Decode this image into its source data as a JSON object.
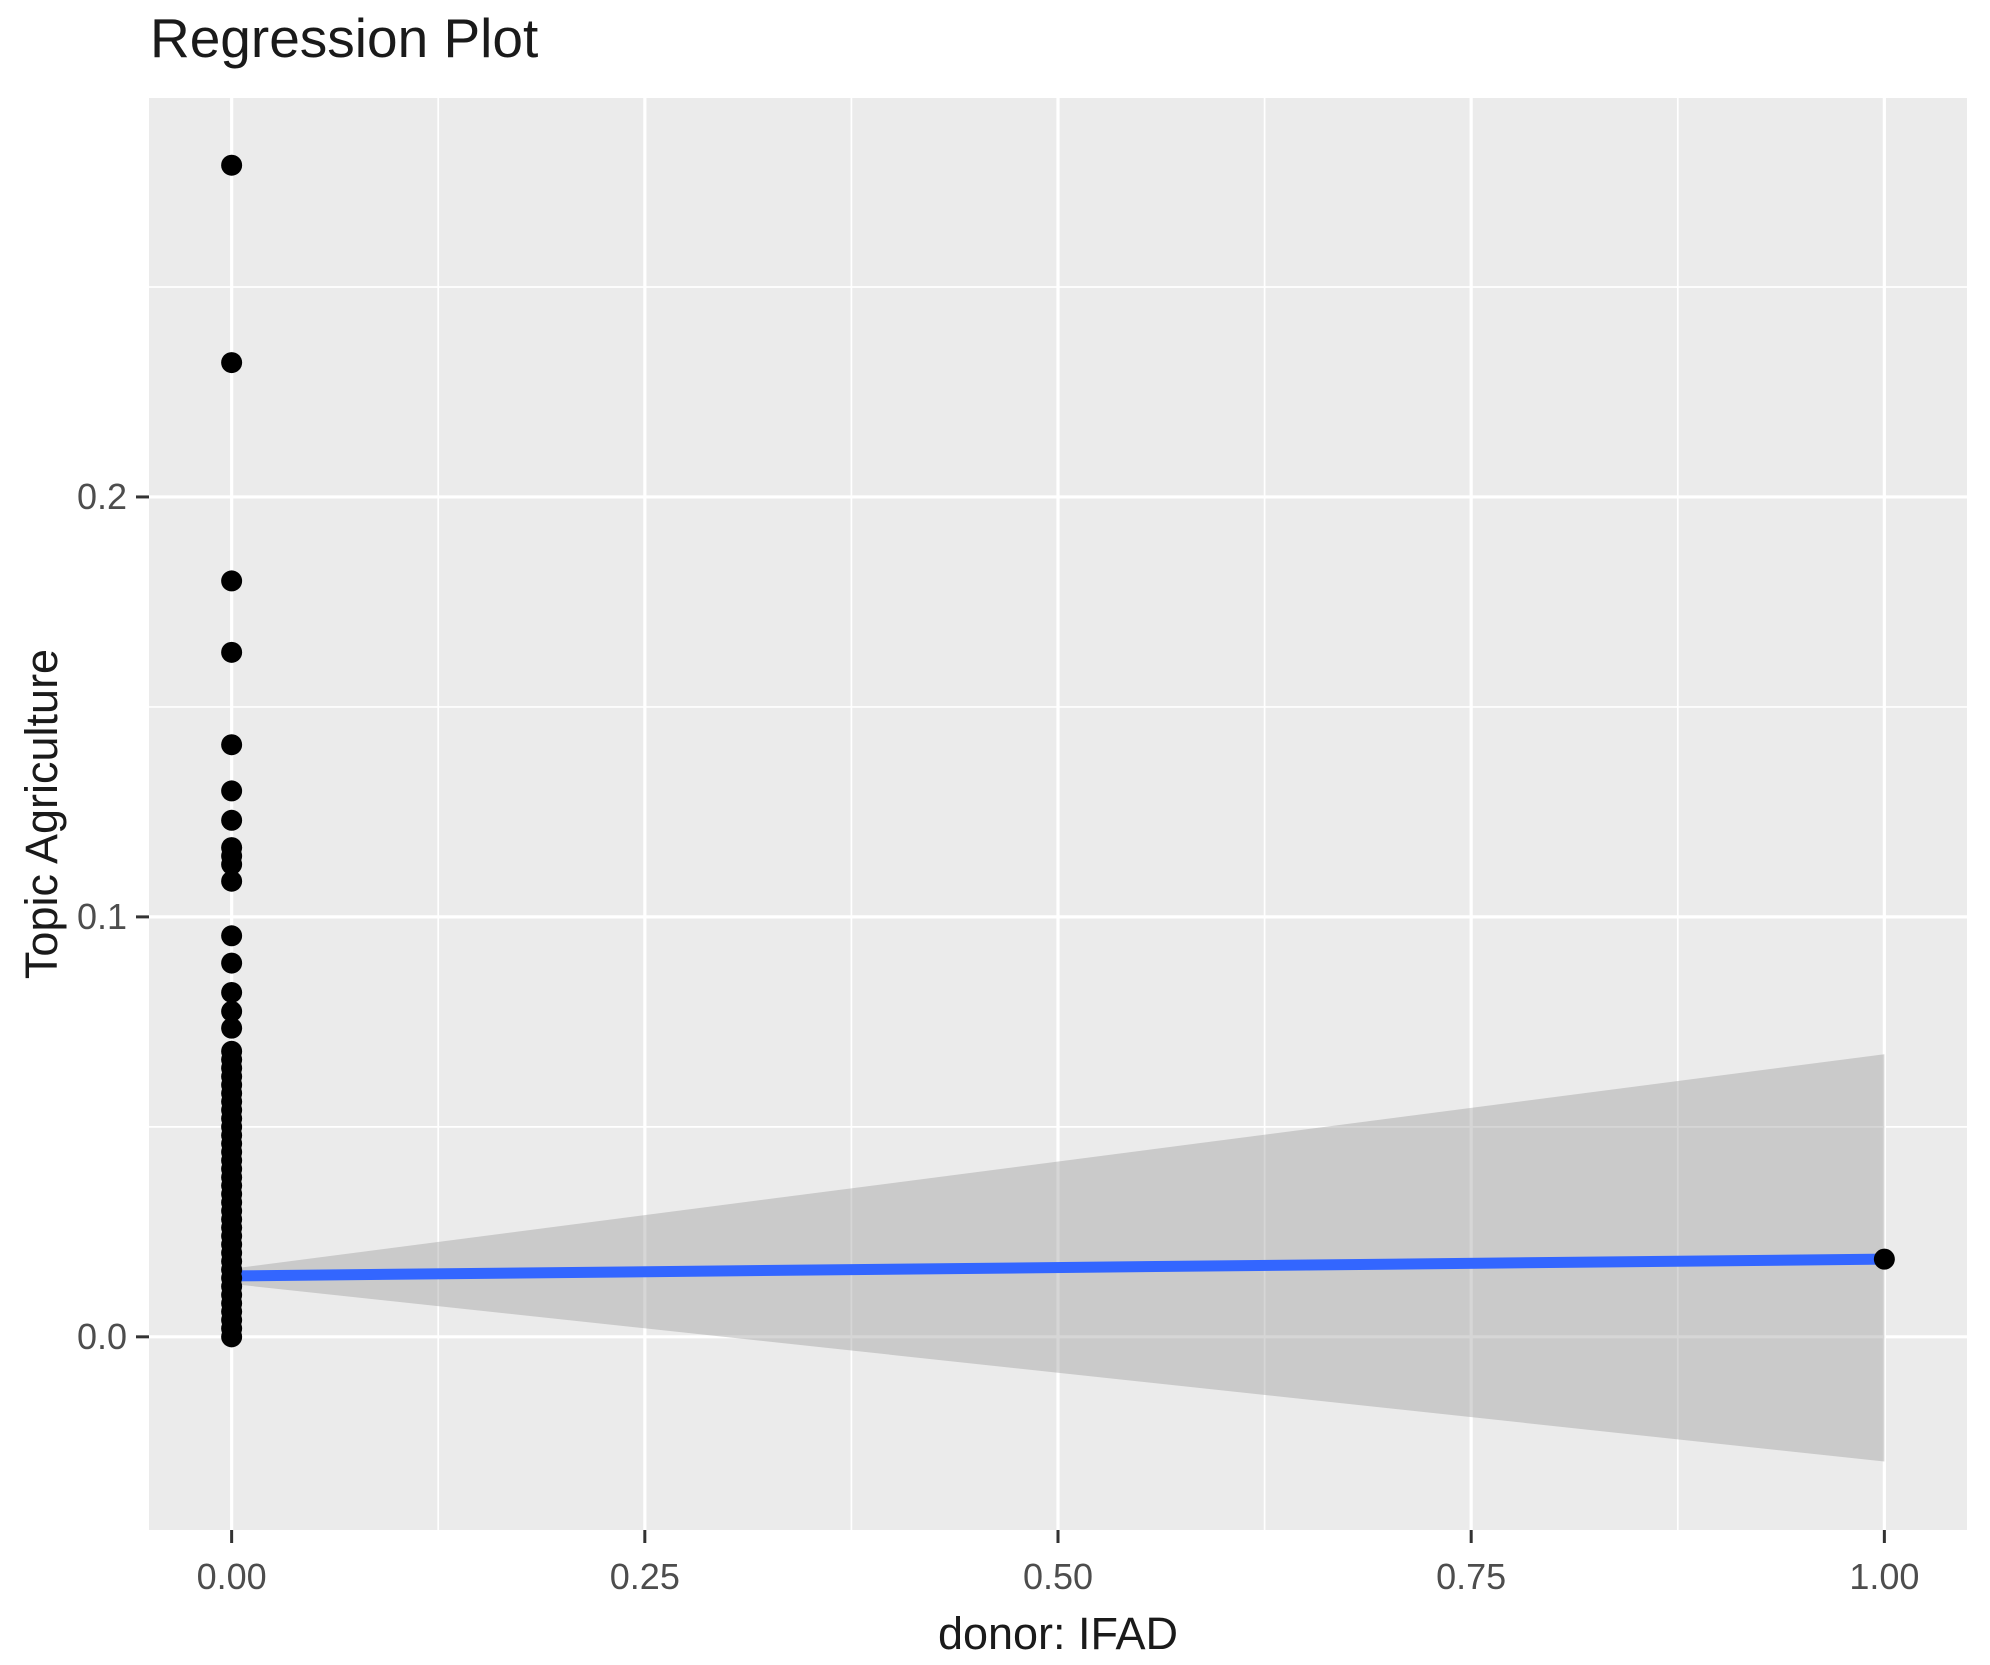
{
  "chart_data": {
    "type": "scatter",
    "title": "Regression Plot",
    "xlabel": "donor: IFAD",
    "ylabel": "Topic Agriculture",
    "legend": "none",
    "grid": true,
    "xlim": [
      -0.05,
      1.05
    ],
    "ylim": [
      -0.046,
      0.295
    ],
    "x_major_ticks": [
      0.0,
      0.25,
      0.5,
      0.75,
      1.0
    ],
    "x_tick_labels": [
      "0.00",
      "0.25",
      "0.50",
      "0.75",
      "1.00"
    ],
    "x_minor_ticks": [
      0.125,
      0.375,
      0.625,
      0.875
    ],
    "y_major_ticks": [
      0.0,
      0.1,
      0.2
    ],
    "y_tick_labels": [
      "0.0",
      "0.1",
      "0.2"
    ],
    "y_minor_ticks": [
      0.05,
      0.15,
      0.25
    ],
    "points": [
      [
        0,
        0.279
      ],
      [
        0,
        0.232
      ],
      [
        0,
        0.18
      ],
      [
        0,
        0.163
      ],
      [
        0,
        0.141
      ],
      [
        0,
        0.13
      ],
      [
        0,
        0.123
      ],
      [
        0,
        0.1165
      ],
      [
        0,
        0.1145
      ],
      [
        0,
        0.1125
      ],
      [
        0,
        0.1085
      ],
      [
        0,
        0.0955
      ],
      [
        0,
        0.089
      ],
      [
        0,
        0.082
      ],
      [
        0,
        0.0775
      ],
      [
        0,
        0.0735
      ],
      [
        0,
        0.068
      ],
      [
        0,
        0.066
      ],
      [
        0,
        0.064
      ],
      [
        0,
        0.062
      ],
      [
        0,
        0.06
      ],
      [
        0,
        0.058
      ],
      [
        0,
        0.056
      ],
      [
        0,
        0.054
      ],
      [
        0,
        0.052
      ],
      [
        0,
        0.05
      ],
      [
        0,
        0.048
      ],
      [
        0,
        0.046
      ],
      [
        0,
        0.044
      ],
      [
        0,
        0.042
      ],
      [
        0,
        0.04
      ],
      [
        0,
        0.038
      ],
      [
        0,
        0.036
      ],
      [
        0,
        0.034
      ],
      [
        0,
        0.032
      ],
      [
        0,
        0.03
      ],
      [
        0,
        0.028
      ],
      [
        0,
        0.026
      ],
      [
        0,
        0.024
      ],
      [
        0,
        0.022
      ],
      [
        0,
        0.02
      ],
      [
        0,
        0.018
      ],
      [
        0,
        0.016
      ],
      [
        0,
        0.014
      ],
      [
        0,
        0.012
      ],
      [
        0,
        0.01
      ],
      [
        0,
        0.008
      ],
      [
        0,
        0.006
      ],
      [
        0,
        0.004
      ],
      [
        0,
        0.002
      ],
      [
        0,
        0.0
      ],
      [
        1,
        0.0185
      ]
    ],
    "regression_line": {
      "x": [
        0,
        1
      ],
      "y": [
        0.0145,
        0.0185
      ]
    },
    "confidence_band": {
      "x": [
        0,
        1
      ],
      "upper": [
        0.0162,
        0.0673
      ],
      "lower": [
        0.0126,
        -0.0297
      ]
    },
    "style": {
      "panel_background": "#EBEBEB",
      "grid_color": "#FFFFFF",
      "point_color": "#000000",
      "line_color": "#3366FF",
      "band_color": "#999999",
      "band_opacity": 0.4,
      "tick_mark_color": "#333333",
      "tick_label_color": "#4D4D4D",
      "title_color": "#1A1A1A"
    }
  }
}
